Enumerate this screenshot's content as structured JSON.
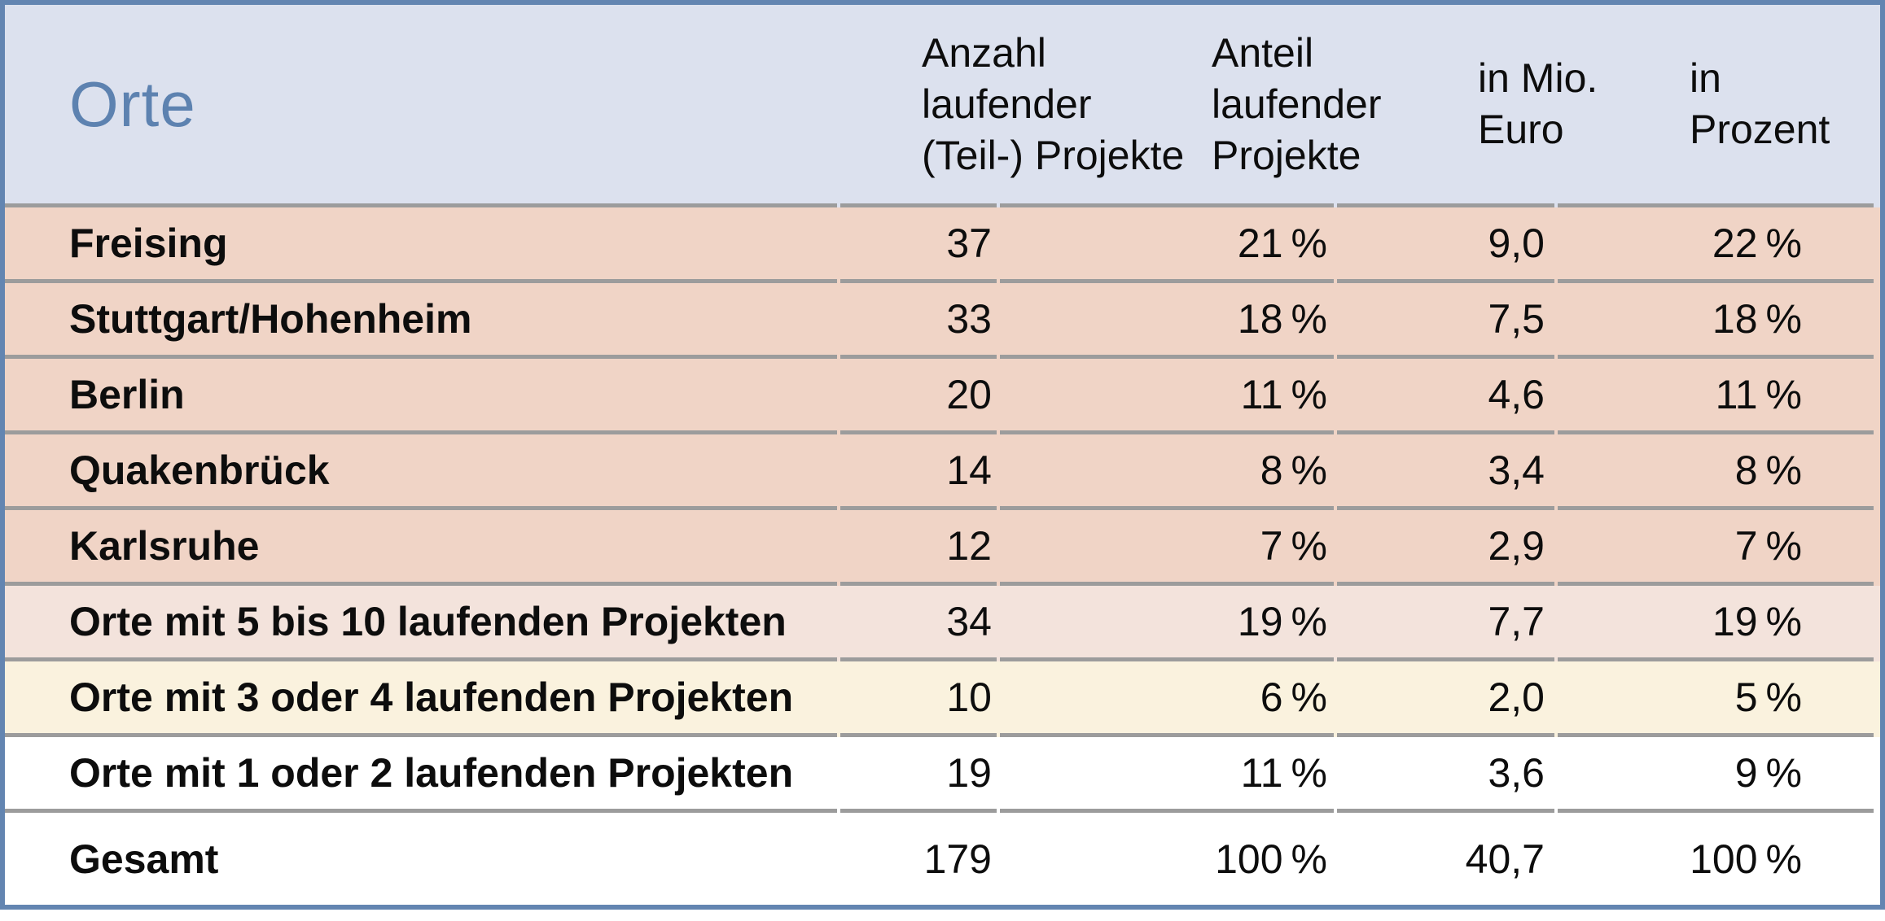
{
  "table": {
    "title": "Orte",
    "headers": {
      "anzahl": "Anzahl\nlaufender\n(Teil-) Projekte",
      "anteil": "Anteil\nlaufender\nProjekte",
      "mio": "in Mio.\nEuro",
      "prozent": "in\nProzent"
    },
    "rows": [
      {
        "label": "Freising",
        "values": [
          "37",
          "21 %",
          "9,0",
          "22 %"
        ],
        "bg": "#f0d4c6"
      },
      {
        "label": "Stuttgart/Hohenheim",
        "values": [
          "33",
          "18 %",
          "7,5",
          "18 %"
        ],
        "bg": "#f0d4c6"
      },
      {
        "label": "Berlin",
        "values": [
          "20",
          "11 %",
          "4,6",
          "11 %"
        ],
        "bg": "#f0d4c6"
      },
      {
        "label": "Quakenbrück",
        "values": [
          "14",
          "8 %",
          "3,4",
          "8 %"
        ],
        "bg": "#f0d4c6"
      },
      {
        "label": "Karlsruhe",
        "values": [
          "12",
          "7 %",
          "2,9",
          "7 %"
        ],
        "bg": "#f0d4c6"
      },
      {
        "label": "Orte mit 5 bis 10 laufenden Projekten",
        "values": [
          "34",
          "19 %",
          "7,7",
          "19 %"
        ],
        "bg": "#f3e3dc"
      },
      {
        "label": "Orte mit 3 oder 4 laufenden Projekten",
        "values": [
          "10",
          "6 %",
          "2,0",
          "5 %"
        ],
        "bg": "#faf2de"
      },
      {
        "label": "Orte mit 1 oder 2 laufenden Projekten",
        "values": [
          "19",
          "11 %",
          "3,6",
          "9 %"
        ],
        "bg": "#ffffff"
      },
      {
        "label": "Gesamt",
        "values": [
          "179",
          "100 %",
          "40,7",
          "100 %"
        ],
        "bg": "#ffffff"
      }
    ],
    "colors": {
      "border_blue": "#6385b1",
      "title_blue": "#5d82b0",
      "header_bg": "#dce1ee",
      "row_salmon": "#f0d4c6",
      "row_light_pink": "#f3e3dc",
      "row_cream": "#faf2de",
      "row_white": "#ffffff",
      "divider_gray": "#9c9c9c",
      "text_black": "#0d0d0d"
    }
  },
  "chart_data": {
    "type": "table",
    "title": "Orte",
    "columns": [
      "Orte",
      "Anzahl laufender (Teil-) Projekte",
      "Anteil laufender Projekte",
      "in Mio. Euro",
      "in Prozent"
    ],
    "rows": [
      {
        "ort": "Freising",
        "anzahl_projekte": 37,
        "anteil_projekte_pct": 21,
        "mio_euro": 9.0,
        "anteil_euro_pct": 22
      },
      {
        "ort": "Stuttgart/Hohenheim",
        "anzahl_projekte": 33,
        "anteil_projekte_pct": 18,
        "mio_euro": 7.5,
        "anteil_euro_pct": 18
      },
      {
        "ort": "Berlin",
        "anzahl_projekte": 20,
        "anteil_projekte_pct": 11,
        "mio_euro": 4.6,
        "anteil_euro_pct": 11
      },
      {
        "ort": "Quakenbrück",
        "anzahl_projekte": 14,
        "anteil_projekte_pct": 8,
        "mio_euro": 3.4,
        "anteil_euro_pct": 8
      },
      {
        "ort": "Karlsruhe",
        "anzahl_projekte": 12,
        "anteil_projekte_pct": 7,
        "mio_euro": 2.9,
        "anteil_euro_pct": 7
      },
      {
        "ort": "Orte mit 5 bis 10 laufenden Projekten",
        "anzahl_projekte": 34,
        "anteil_projekte_pct": 19,
        "mio_euro": 7.7,
        "anteil_euro_pct": 19
      },
      {
        "ort": "Orte mit 3 oder 4 laufenden Projekten",
        "anzahl_projekte": 10,
        "anteil_projekte_pct": 6,
        "mio_euro": 2.0,
        "anteil_euro_pct": 5
      },
      {
        "ort": "Orte mit 1 oder 2 laufenden Projekten",
        "anzahl_projekte": 19,
        "anteil_projekte_pct": 11,
        "mio_euro": 3.6,
        "anteil_euro_pct": 9
      },
      {
        "ort": "Gesamt",
        "anzahl_projekte": 179,
        "anteil_projekte_pct": 100,
        "mio_euro": 40.7,
        "anteil_euro_pct": 100
      }
    ]
  }
}
